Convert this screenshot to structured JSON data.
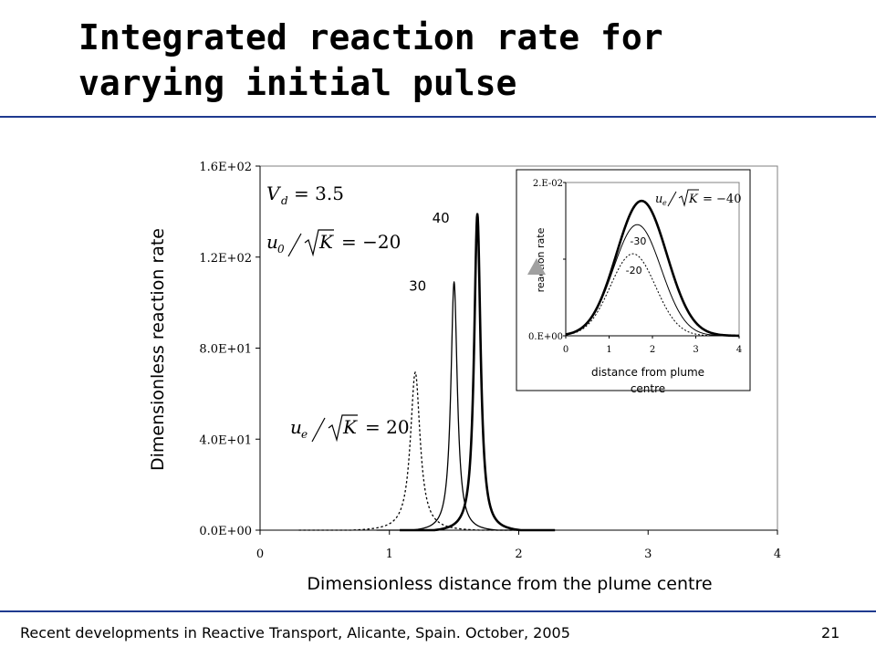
{
  "slide": {
    "title": "Integrated reaction rate for varying initial pulse",
    "footer": "Recent developments in Reactive Transport, Alicante, Spain. October, 2005",
    "page_number": "21"
  },
  "colors": {
    "rule": "#1f3a8f",
    "curve": "#000000",
    "marker": "#a0a0a0"
  },
  "chart_data": [
    {
      "type": "line",
      "xlabel": "Dimensionless distance from the plume centre",
      "ylabel": "Dimensionless reaction rate",
      "xlim": [
        0,
        4
      ],
      "ylim": [
        0,
        160
      ],
      "x_ticks": [
        "0",
        "1",
        "2",
        "3",
        "4"
      ],
      "y_ticks": [
        "0.0E+00",
        "4.0E+01",
        "8.0E+01",
        "1.2E+02",
        "1.6E+02"
      ],
      "parameters": {
        "V_label": "V",
        "V_sub": "d",
        "V_value": "= 3.5",
        "u_label": "u",
        "u_sub": "0",
        "K_label": "K",
        "u_value": "= −20"
      },
      "series_legend": {
        "u_label": "u",
        "u_sub": "e",
        "K_label": "K",
        "value": "= 20"
      },
      "series": [
        {
          "label": "",
          "peak_x": 1.2,
          "peak_y": 70,
          "width": 0.09,
          "style": "dotted",
          "x": [
            0.6,
            0.8,
            0.9,
            1.0,
            1.05,
            1.1,
            1.15,
            1.2,
            1.25,
            1.3,
            1.35,
            1.4,
            1.5,
            1.6,
            1.7
          ],
          "y": [
            0.1,
            0.9,
            2.5,
            9.0,
            18.0,
            37.0,
            60.0,
            70.0,
            60.0,
            37.0,
            18.0,
            9.0,
            2.5,
            0.9,
            0.3
          ]
        },
        {
          "label": "30",
          "peak_x": 1.5,
          "peak_y": 110,
          "width": 0.06,
          "style": "solid",
          "x": [
            1.0,
            1.2,
            1.3,
            1.4,
            1.45,
            1.5,
            1.55,
            1.6,
            1.7,
            1.8,
            2.0
          ],
          "y": [
            0.8,
            4.0,
            9.0,
            31.0,
            66.0,
            110.0,
            66.0,
            31.0,
            9.0,
            4.0,
            0.9
          ]
        },
        {
          "label": "40",
          "peak_x": 1.68,
          "peak_y": 140,
          "width": 0.06,
          "style": "bold",
          "x": [
            1.1,
            1.3,
            1.5,
            1.6,
            1.65,
            1.68,
            1.72,
            1.8,
            1.9,
            2.0,
            2.2
          ],
          "y": [
            0.6,
            3.0,
            14.0,
            50.0,
            118.0,
            140.0,
            108.0,
            50.0,
            14.0,
            6.0,
            1.5
          ]
        }
      ]
    },
    {
      "type": "line",
      "inset": true,
      "xlabel": "distance from plume centre",
      "ylabel": "reaction rate",
      "xlim": [
        0,
        4
      ],
      "ylim": [
        0,
        0.02
      ],
      "x_ticks": [
        "0",
        "1",
        "2",
        "3",
        "4"
      ],
      "y_ticks": [
        "0.E+00",
        "2.E-02"
      ],
      "series_legend": {
        "u_label": "u",
        "u_sub": "e",
        "K_label": "K",
        "value": "= −40"
      },
      "series": [
        {
          "label": "",
          "peak_x": 1.75,
          "peak_y": 0.0176,
          "sigma": 0.58,
          "style": "bold",
          "x": [
            0,
            0.5,
            1.0,
            1.5,
            1.75,
            2.0,
            2.5,
            3.0,
            3.5,
            4.0
          ],
          "y": [
            0.0002,
            0.0017,
            0.0095,
            0.0161,
            0.0176,
            0.016,
            0.009,
            0.002,
            0.0003,
            0.0
          ]
        },
        {
          "label": "-30",
          "peak_x": 1.65,
          "peak_y": 0.0145,
          "sigma": 0.55,
          "style": "solid",
          "x": [
            0,
            0.5,
            1.0,
            1.5,
            1.65,
            2.0,
            2.5,
            3.0,
            3.5,
            4.0
          ],
          "y": [
            0.0002,
            0.0017,
            0.0072,
            0.0141,
            0.0145,
            0.0123,
            0.006,
            0.0012,
            0.0001,
            0.0
          ]
        },
        {
          "label": "-20",
          "peak_x": 1.55,
          "peak_y": 0.0107,
          "sigma": 0.52,
          "style": "dotted",
          "x": [
            0,
            0.5,
            1.0,
            1.5,
            1.55,
            2.0,
            2.5,
            3.0,
            3.5,
            4.0
          ],
          "y": [
            0.0002,
            0.0013,
            0.006,
            0.0107,
            0.0107,
            0.0074,
            0.003,
            0.0005,
            0.0,
            0.0
          ]
        }
      ]
    }
  ]
}
